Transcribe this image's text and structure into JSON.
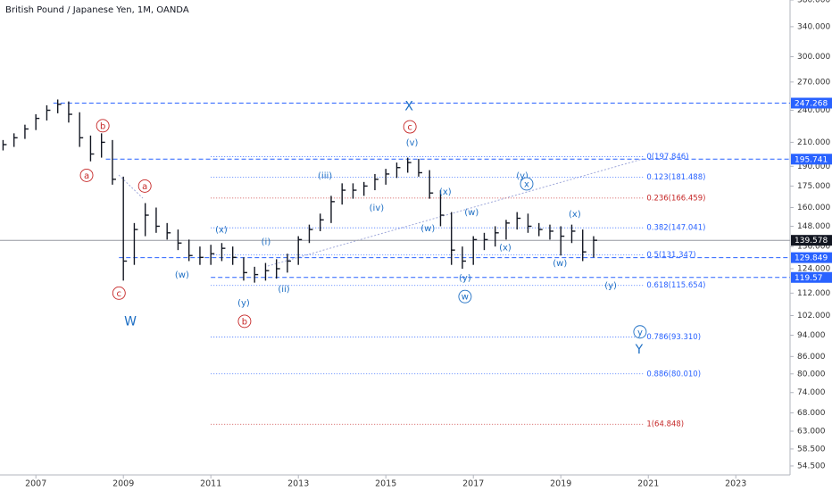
{
  "chart_data": {
    "type": "ohlc",
    "title": "British Pound / Japanese Yen, 1M, OANDA",
    "log_scale": true,
    "color": "#131722",
    "x": [
      2006.25,
      2006.5,
      2006.75,
      2007,
      2007.25,
      2007.5,
      2007.75,
      2008,
      2008.25,
      2008.5,
      2008.75,
      2009,
      2009.25,
      2009.5,
      2009.75,
      2010,
      2010.25,
      2010.5,
      2010.75,
      2011,
      2011.25,
      2011.5,
      2011.75,
      2012,
      2012.25,
      2012.5,
      2012.75,
      2013,
      2013.25,
      2013.5,
      2013.75,
      2014,
      2014.25,
      2014.5,
      2014.75,
      2015,
      2015.25,
      2015.5,
      2015.75,
      2016,
      2016.25,
      2016.5,
      2016.75,
      2017,
      2017.25,
      2017.5,
      2017.75,
      2018,
      2018.25,
      2018.5,
      2018.75,
      2019,
      2019.25,
      2019.5,
      2019.75
    ],
    "values": [
      208,
      214,
      222,
      232,
      240,
      246,
      236,
      214,
      200,
      210,
      180,
      128,
      146,
      155,
      148,
      144,
      138,
      131,
      130,
      132,
      135,
      130,
      122,
      121,
      123,
      124,
      128,
      140,
      146,
      152,
      164,
      172,
      172,
      175,
      180,
      184,
      189,
      193,
      185,
      170,
      155,
      134,
      128,
      140,
      140,
      144,
      150,
      153,
      148,
      146,
      145,
      142,
      145,
      133,
      139.6
    ],
    "high": [
      212,
      218,
      226,
      236,
      245,
      251,
      249,
      238,
      216,
      218,
      212,
      182,
      150,
      163,
      160,
      150,
      146,
      140,
      136,
      137,
      138,
      136,
      130,
      125,
      127,
      129,
      132,
      142,
      149,
      156,
      168,
      177,
      177,
      178,
      184,
      188,
      193,
      197,
      196,
      187,
      172,
      157,
      136,
      142,
      144,
      148,
      152,
      157,
      156,
      150,
      149,
      148,
      149,
      146,
      142
    ],
    "low": [
      203,
      206,
      213,
      221,
      230,
      237,
      228,
      206,
      194,
      197,
      176,
      118,
      126,
      142,
      144,
      140,
      134,
      128,
      126,
      126,
      128,
      126,
      118,
      117,
      118,
      119,
      122,
      126,
      138,
      145,
      150,
      162,
      166,
      168,
      172,
      176,
      181,
      185,
      182,
      166,
      148,
      126,
      124,
      126,
      134,
      136,
      140,
      146,
      144,
      142,
      140,
      131,
      138,
      128,
      130
    ],
    "xlim": [
      2006.18,
      2024.24
    ],
    "xticks": [
      2007,
      2009,
      2011,
      2013,
      2015,
      2017,
      2019,
      2021,
      2023
    ],
    "ylim": [
      52.5,
      380
    ],
    "yticks": [
      {
        "value": 380,
        "label": "380.000"
      },
      {
        "value": 340,
        "label": "340.000"
      },
      {
        "value": 300,
        "label": "300.000"
      },
      {
        "value": 270,
        "label": "270.000"
      },
      {
        "value": 240,
        "label": "240.000"
      },
      {
        "value": 210,
        "label": "210.000"
      },
      {
        "value": 190,
        "label": "190.000"
      },
      {
        "value": 175,
        "label": "175.000"
      },
      {
        "value": 160,
        "label": "160.000"
      },
      {
        "value": 148,
        "label": "148.000"
      },
      {
        "value": 136,
        "label": "136.000"
      },
      {
        "value": 124,
        "label": "124.000"
      },
      {
        "value": 112,
        "label": "112.000"
      },
      {
        "value": 102,
        "label": "102.000"
      },
      {
        "value": 94,
        "label": "94.000"
      },
      {
        "value": 86,
        "label": "86.000"
      },
      {
        "value": 80,
        "label": "80.000"
      },
      {
        "value": 74,
        "label": "74.000"
      },
      {
        "value": 68,
        "label": "68.000"
      },
      {
        "value": 63,
        "label": "63.000"
      },
      {
        "value": 58.5,
        "label": "58.500"
      },
      {
        "value": 54.5,
        "label": "54.500"
      }
    ],
    "price_lines": [
      {
        "value": 247.268,
        "from": 2007.4,
        "color": "#2962ff",
        "dashed": true
      },
      {
        "value": 195.741,
        "from": 2008.6,
        "color": "#2962ff",
        "dashed": true
      },
      {
        "value": 139.578,
        "from": 2006.18,
        "color": "#131722",
        "dashed": false
      },
      {
        "value": 129.849,
        "from": 2008.9,
        "color": "#2962ff",
        "dashed": true
      },
      {
        "value": 119.57,
        "from": 2011.0,
        "color": "#2962ff",
        "dashed": true
      }
    ],
    "fib_from": 2011.0,
    "fib_to": 2020.9,
    "fib_levels": [
      {
        "label": "0(197.846)",
        "value": 197.846,
        "color": "#2962ff"
      },
      {
        "label": "0.123(181.488)",
        "value": 181.488,
        "color": "#2962ff"
      },
      {
        "label": "0.236(166.459)",
        "value": 166.459,
        "color": "#c62828"
      },
      {
        "label": "0.382(147.041)",
        "value": 147.041,
        "color": "#2962ff"
      },
      {
        "label": "0.5(131.347)",
        "value": 131.347,
        "color": "#2962ff"
      },
      {
        "label": "0.618(115.654)",
        "value": 115.654,
        "color": "#2962ff"
      },
      {
        "label": "0.786(93.310)",
        "value": 93.31,
        "color": "#2962ff"
      },
      {
        "label": "0.886(80.010)",
        "value": 80.01,
        "color": "#2962ff"
      },
      {
        "label": "1(64.848)",
        "value": 64.848,
        "color": "#c62828"
      }
    ],
    "annotations": [
      {
        "text": "X",
        "x": 2015.53,
        "y": 244,
        "color": "#1e6fc4",
        "circle": false
      },
      {
        "text": "c",
        "x": 2015.55,
        "y": 224,
        "color": "#c62828",
        "circle": true
      },
      {
        "text": "(v)",
        "x": 2015.6,
        "y": 210,
        "color": "#1e6fc4",
        "circle": false
      },
      {
        "text": "a",
        "x": 2008.16,
        "y": 183,
        "color": "#c62828",
        "circle": true
      },
      {
        "text": "b",
        "x": 2008.53,
        "y": 225,
        "color": "#c62828",
        "circle": true
      },
      {
        "text": "a",
        "x": 2009.49,
        "y": 175,
        "color": "#c62828",
        "circle": true
      },
      {
        "text": "c",
        "x": 2008.9,
        "y": 112,
        "color": "#c62828",
        "circle": true
      },
      {
        "text": "W",
        "x": 2009.16,
        "y": 99.6,
        "color": "#1e6fc4",
        "circle": false
      },
      {
        "text": "(x)",
        "x": 2011.24,
        "y": 146,
        "color": "#1e6fc4",
        "circle": false
      },
      {
        "text": "(w)",
        "x": 2010.34,
        "y": 121,
        "color": "#1e6fc4",
        "circle": false
      },
      {
        "text": "(i)",
        "x": 2012.26,
        "y": 139,
        "color": "#1e6fc4",
        "circle": false
      },
      {
        "text": "(y)",
        "x": 2011.75,
        "y": 107.6,
        "color": "#1e6fc4",
        "circle": false
      },
      {
        "text": "b",
        "x": 2011.77,
        "y": 99.6,
        "color": "#c62828",
        "circle": true
      },
      {
        "text": "(ii)",
        "x": 2012.67,
        "y": 114,
        "color": "#1e6fc4",
        "circle": false
      },
      {
        "text": "(iii)",
        "x": 2013.61,
        "y": 183,
        "color": "#1e6fc4",
        "circle": false
      },
      {
        "text": "(iv)",
        "x": 2014.79,
        "y": 160,
        "color": "#1e6fc4",
        "circle": false
      },
      {
        "text": "(x)",
        "x": 2016.36,
        "y": 171,
        "color": "#1e6fc4",
        "circle": false
      },
      {
        "text": "(w)",
        "x": 2015.96,
        "y": 147,
        "color": "#1e6fc4",
        "circle": false
      },
      {
        "text": "(w)",
        "x": 2016.96,
        "y": 157,
        "color": "#1e6fc4",
        "circle": false
      },
      {
        "text": "(y)",
        "x": 2016.81,
        "y": 119.5,
        "color": "#1e6fc4",
        "circle": false
      },
      {
        "text": "w",
        "x": 2016.81,
        "y": 110.4,
        "color": "#1e6fc4",
        "circle": true
      },
      {
        "text": "(x)",
        "x": 2017.73,
        "y": 135.7,
        "color": "#1e6fc4",
        "circle": false
      },
      {
        "text": "(y)",
        "x": 2018.12,
        "y": 183,
        "color": "#1e6fc4",
        "circle": false
      },
      {
        "text": "x",
        "x": 2018.22,
        "y": 176.6,
        "color": "#1e6fc4",
        "circle": true
      },
      {
        "text": "(x)",
        "x": 2019.32,
        "y": 156,
        "color": "#1e6fc4",
        "circle": false
      },
      {
        "text": "(w)",
        "x": 2018.98,
        "y": 127,
        "color": "#1e6fc4",
        "circle": false
      },
      {
        "text": "(y)",
        "x": 2020.14,
        "y": 115.8,
        "color": "#1e6fc4",
        "circle": false
      },
      {
        "text": "y",
        "x": 2020.81,
        "y": 95.3,
        "color": "#1e6fc4",
        "circle": true
      },
      {
        "text": "Y",
        "x": 2020.79,
        "y": 88.5,
        "color": "#1e6fc4",
        "circle": false
      }
    ]
  }
}
